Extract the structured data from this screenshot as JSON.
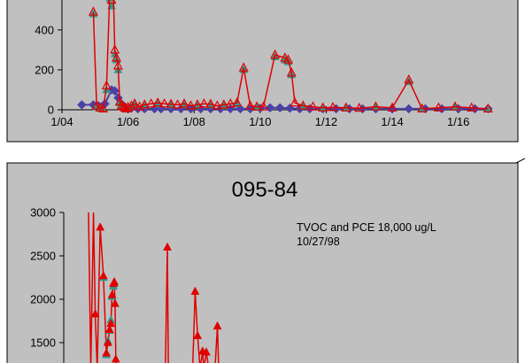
{
  "chart_data": [
    {
      "type": "line",
      "xlim": [
        2004.0,
        2017.0
      ],
      "ylim": [
        0,
        550
      ],
      "x_ticks": [
        "1/04",
        "1/06",
        "1/08",
        "1/10",
        "1/12",
        "1/14",
        "1/16"
      ],
      "y_ticks": [
        "0",
        "200",
        "400"
      ],
      "grid": false,
      "series": [
        {
          "color": "#e00000",
          "marker": "open-triangle",
          "x": [
            2004.95,
            2005.05,
            2005.15,
            2005.25,
            2005.35,
            2005.45,
            2005.5,
            2005.55,
            2005.6,
            2005.65,
            2005.7,
            2005.75,
            2005.8,
            2005.85,
            2005.9,
            2005.95,
            2006.0,
            2006.1,
            2006.2,
            2006.35,
            2006.5,
            2006.7,
            2006.9,
            2007.1,
            2007.3,
            2007.5,
            2007.7,
            2007.9,
            2008.1,
            2008.3,
            2008.5,
            2008.7,
            2008.9,
            2009.1,
            2009.3,
            2009.5,
            2009.7,
            2009.9,
            2010.1,
            2010.45,
            2010.75,
            2010.85,
            2010.95,
            2011.05,
            2011.3,
            2011.6,
            2011.9,
            2012.2,
            2012.6,
            2013.0,
            2013.5,
            2014.0,
            2014.5,
            2014.9,
            2015.4,
            2015.9,
            2016.4,
            2016.9
          ],
          "y": [
            490,
            20,
            10,
            5,
            120,
            600,
            550,
            620,
            300,
            260,
            220,
            40,
            20,
            15,
            10,
            5,
            12,
            20,
            30,
            15,
            25,
            30,
            35,
            30,
            28,
            25,
            30,
            20,
            25,
            30,
            28,
            20,
            25,
            30,
            35,
            210,
            20,
            15,
            15,
            275,
            260,
            250,
            185,
            35,
            20,
            15,
            10,
            12,
            10,
            8,
            15,
            10,
            150,
            5,
            10,
            15,
            10,
            5
          ]
        },
        {
          "color": "#2a9d8f",
          "marker": "filled-triangle",
          "x": [
            2004.95,
            2005.05,
            2005.15,
            2005.25,
            2005.35,
            2005.45,
            2005.5,
            2005.6,
            2005.65,
            2005.7,
            2005.75,
            2005.8,
            2005.9,
            2006.0,
            2006.2,
            2006.5,
            2006.9,
            2007.3,
            2007.7,
            2008.1,
            2008.5,
            2008.9,
            2009.3,
            2009.5,
            2009.9,
            2010.45,
            2010.75,
            2010.85,
            2010.95,
            2011.3,
            2011.9,
            2012.6,
            2013.5,
            2014.5,
            2014.9,
            2015.9,
            2016.9
          ],
          "y": [
            480,
            15,
            8,
            5,
            100,
            560,
            520,
            280,
            250,
            200,
            35,
            15,
            8,
            10,
            25,
            22,
            28,
            24,
            26,
            22,
            24,
            20,
            30,
            200,
            12,
            265,
            250,
            240,
            175,
            18,
            8,
            8,
            12,
            140,
            4,
            12,
            4
          ]
        },
        {
          "color": "#4b3fa8",
          "marker": "diamond",
          "x": [
            2004.6,
            2004.95,
            2005.1,
            2005.2,
            2005.3,
            2005.5,
            2005.6,
            2005.7,
            2005.8,
            2005.9,
            2006.0,
            2006.1,
            2006.3,
            2006.5,
            2006.8,
            2007.0,
            2007.3,
            2007.6,
            2007.9,
            2008.2,
            2008.5,
            2008.8,
            2009.1,
            2009.4,
            2009.7,
            2010.0,
            2010.3,
            2010.6,
            2010.9,
            2011.2,
            2011.5,
            2011.9,
            2012.3,
            2012.7,
            2013.1,
            2013.5,
            2014.0,
            2014.5,
            2015.0,
            2015.5,
            2016.0,
            2016.5,
            2016.9
          ],
          "y": [
            25,
            25,
            20,
            15,
            30,
            100,
            95,
            60,
            30,
            15,
            10,
            8,
            5,
            5,
            5,
            5,
            5,
            5,
            5,
            5,
            5,
            5,
            5,
            5,
            5,
            8,
            10,
            10,
            8,
            5,
            5,
            5,
            5,
            5,
            5,
            5,
            5,
            5,
            5,
            5,
            5,
            5,
            5
          ]
        }
      ]
    },
    {
      "type": "line",
      "title": "095-84",
      "annotation": [
        "TVOC and PCE 18,000 ug/L",
        "10/27/98"
      ],
      "ylim": [
        1300,
        3000
      ],
      "y_ticks": [
        "3000",
        "2500",
        "2000",
        "1500"
      ],
      "grid": false,
      "series": [
        {
          "color": "#e00000",
          "marker": "filled-triangle",
          "points": [
            [
              0.0,
              3000
            ],
            [
              0.09,
              1200
            ],
            [
              0.2,
              3000
            ],
            [
              0.27,
              1830
            ],
            [
              0.35,
              1200
            ],
            [
              0.47,
              2830
            ],
            [
              0.6,
              2270
            ],
            [
              0.72,
              1380
            ],
            [
              0.78,
              1500
            ],
            [
              0.85,
              1650
            ],
            [
              0.9,
              1720
            ],
            [
              0.95,
              2050
            ],
            [
              1.0,
              2180
            ],
            [
              1.04,
              2200
            ],
            [
              1.07,
              1950
            ],
            [
              1.1,
              1310
            ],
            [
              1.13,
              1200
            ],
            [
              3.1,
              1200
            ],
            [
              3.18,
              2600
            ],
            [
              3.22,
              1200
            ],
            [
              4.2,
              1200
            ],
            [
              4.3,
              2090
            ],
            [
              4.4,
              1580
            ],
            [
              4.5,
              1200
            ],
            [
              4.6,
              1400
            ],
            [
              4.65,
              1200
            ],
            [
              4.75,
              1390
            ],
            [
              4.85,
              1200
            ],
            [
              5.1,
              1200
            ],
            [
              5.2,
              1690
            ],
            [
              5.25,
              1200
            ]
          ]
        },
        {
          "color": "#2a9d8f",
          "marker": "filled-triangle",
          "points": [
            [
              0.6,
              2250
            ],
            [
              0.72,
              1360
            ],
            [
              0.78,
              1520
            ],
            [
              0.85,
              1640
            ],
            [
              0.9,
              1760
            ],
            [
              0.95,
              2030
            ],
            [
              1.0,
              2150
            ],
            [
              1.04,
              2180
            ]
          ]
        }
      ]
    }
  ]
}
